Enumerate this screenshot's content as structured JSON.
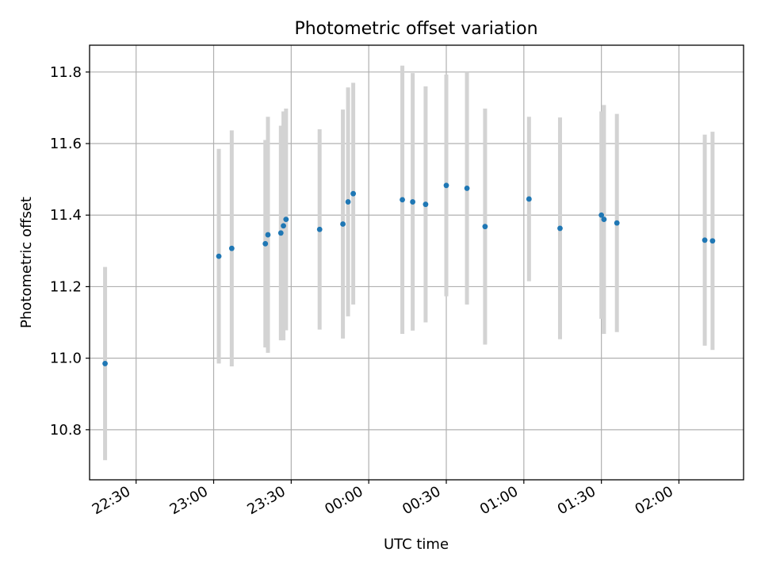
{
  "chart_data": {
    "type": "scatter",
    "title": "Photometric offset variation",
    "xlabel": "UTC time",
    "ylabel": "Photometric offset",
    "x_unit": "time of day (HH:MM), 22:30 to 02:00 spans midnight",
    "xlim": [
      "22:12",
      "02:25"
    ],
    "ylim": [
      10.66,
      11.875
    ],
    "grid": true,
    "x_ticks": [
      {
        "time": "22:30",
        "label": "22:30"
      },
      {
        "time": "23:00",
        "label": "23:00"
      },
      {
        "time": "23:30",
        "label": "23:30"
      },
      {
        "time": "00:00",
        "label": "00:00"
      },
      {
        "time": "00:30",
        "label": "00:30"
      },
      {
        "time": "01:00",
        "label": "01:00"
      },
      {
        "time": "01:30",
        "label": "01:30"
      },
      {
        "time": "02:00",
        "label": "02:00"
      }
    ],
    "y_ticks": [
      {
        "value": 10.8,
        "label": "10.8"
      },
      {
        "value": 11.0,
        "label": "11.0"
      },
      {
        "value": 11.2,
        "label": "11.2"
      },
      {
        "value": 11.4,
        "label": "11.4"
      },
      {
        "value": 11.6,
        "label": "11.6"
      },
      {
        "value": 11.8,
        "label": "11.8"
      }
    ],
    "marker_color": "#1f77b4",
    "errorbar_color": "#d3d3d3",
    "points": [
      {
        "x": "22:18",
        "y": 10.985,
        "err": 0.27
      },
      {
        "x": "23:02",
        "y": 11.285,
        "err": 0.3
      },
      {
        "x": "23:07",
        "y": 11.307,
        "err": 0.33
      },
      {
        "x": "23:20",
        "y": 11.32,
        "err": 0.29
      },
      {
        "x": "23:21",
        "y": 11.345,
        "err": 0.33
      },
      {
        "x": "23:26",
        "y": 11.35,
        "err": 0.3
      },
      {
        "x": "23:27",
        "y": 11.37,
        "err": 0.32
      },
      {
        "x": "23:28",
        "y": 11.388,
        "err": 0.31
      },
      {
        "x": "23:41",
        "y": 11.36,
        "err": 0.28
      },
      {
        "x": "23:50",
        "y": 11.375,
        "err": 0.32
      },
      {
        "x": "23:52",
        "y": 11.437,
        "err": 0.32
      },
      {
        "x": "23:54",
        "y": 11.46,
        "err": 0.31
      },
      {
        "x": "00:13",
        "y": 11.443,
        "err": 0.375
      },
      {
        "x": "00:17",
        "y": 11.437,
        "err": 0.36
      },
      {
        "x": "00:22",
        "y": 11.43,
        "err": 0.33
      },
      {
        "x": "00:30",
        "y": 11.483,
        "err": 0.31
      },
      {
        "x": "00:38",
        "y": 11.475,
        "err": 0.325
      },
      {
        "x": "00:45",
        "y": 11.368,
        "err": 0.33
      },
      {
        "x": "01:02",
        "y": 11.445,
        "err": 0.23
      },
      {
        "x": "01:14",
        "y": 11.363,
        "err": 0.31
      },
      {
        "x": "01:30",
        "y": 11.4,
        "err": 0.29
      },
      {
        "x": "01:31",
        "y": 11.388,
        "err": 0.32
      },
      {
        "x": "01:36",
        "y": 11.378,
        "err": 0.305
      },
      {
        "x": "02:10",
        "y": 11.33,
        "err": 0.295
      },
      {
        "x": "02:13",
        "y": 11.328,
        "err": 0.305
      }
    ]
  }
}
